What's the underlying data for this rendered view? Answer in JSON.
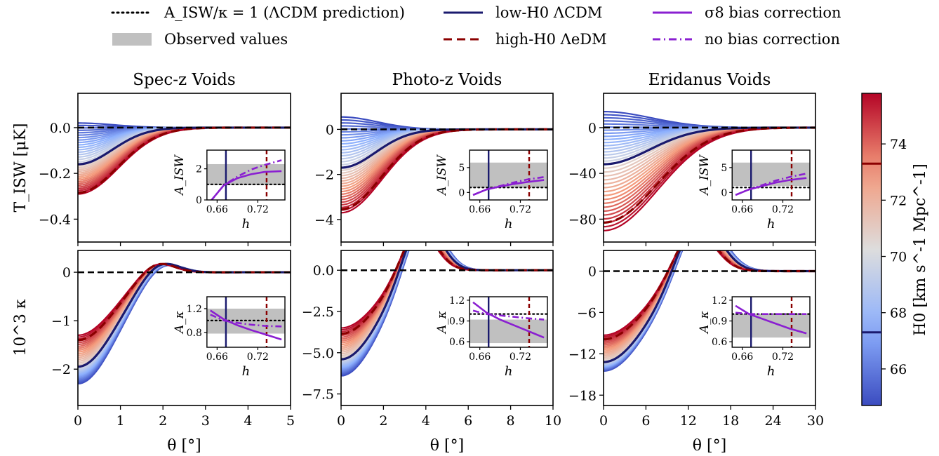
{
  "figure": {
    "column_titles": [
      "Spec-z Voids",
      "Photo-z Voids",
      "Eridanus Voids"
    ],
    "row_ylabels": [
      "T_ISW [μK]",
      "10^3 κ"
    ],
    "xlabel": "θ [°]"
  },
  "legend": [
    {
      "label": "A_ISW/κ = 1 (ΛCDM prediction)",
      "style": "dotted",
      "color": "#000000"
    },
    {
      "label": "Observed values",
      "style": "patch",
      "color": "#c0c0c0"
    },
    {
      "label": "low-H0 ΛCDM",
      "style": "solid",
      "color": "#1a1a6e"
    },
    {
      "label": "high-H0 ΛeDM",
      "style": "dashed",
      "color": "#8b0000"
    },
    {
      "label": "σ8 bias correction",
      "style": "solid",
      "color": "#8a1fd1"
    },
    {
      "label": "no bias correction",
      "style": "dashdot",
      "color": "#8a1fd1"
    }
  ],
  "colorbar": {
    "label": "H0 [km s^-1 Mpc^-1]",
    "range": [
      64.7,
      75.8
    ],
    "ticks": [
      66,
      68,
      70,
      72,
      74
    ],
    "markers": [
      {
        "value": 67.3,
        "color": "#1a1a6e"
      },
      {
        "value": 73.3,
        "color": "#8b0000"
      }
    ]
  },
  "chart_data": [
    {
      "type": "line",
      "name": "Spec-z Voids T_ISW",
      "xlim": [
        0,
        5
      ],
      "ylim": [
        -0.5,
        0.15
      ],
      "xticks": [
        0,
        1,
        2,
        3,
        4,
        5
      ],
      "yticks": [
        0.0,
        -0.2,
        -0.4
      ],
      "ytick_labels": [
        "0.0",
        "−0.2",
        "−0.4"
      ],
      "show_xticklabels": false,
      "profile": {
        "kind": "isw",
        "width": 1.0
      },
      "family_amplitudes": {
        "low_h0": [
          0.02,
          -0.16
        ],
        "high_h0": [
          -0.16,
          -0.29
        ]
      },
      "reference_curves": {
        "low_h0_lcdm": -0.16,
        "high_h0_lcdm": -0.285
      },
      "inset": {
        "ylabel": "A_ISW",
        "xlim": [
          0.645,
          0.76
        ],
        "xticks": [
          0.66,
          0.72
        ],
        "ylim": [
          0,
          3.2
        ],
        "yticks": [
          0,
          2
        ],
        "band": [
          0.95,
          2.3
        ],
        "prediction": 1.0,
        "vlines": [
          0.673,
          0.733
        ],
        "xlabel": "h",
        "sigma8_bias_correction": {
          "h": [
            0.65,
            0.67,
            0.69,
            0.71,
            0.73,
            0.755
          ],
          "A": [
            -0.1,
            0.95,
            1.4,
            1.65,
            1.8,
            1.85
          ]
        },
        "no_bias_correction": {
          "h": [
            0.65,
            0.67,
            0.69,
            0.71,
            0.73,
            0.755
          ],
          "A": [
            -0.1,
            0.95,
            1.5,
            1.95,
            2.25,
            2.55
          ]
        }
      }
    },
    {
      "type": "line",
      "name": "Photo-z Voids T_ISW",
      "xlim": [
        0,
        10
      ],
      "ylim": [
        -5,
        1.6
      ],
      "xticks": [
        0,
        2,
        4,
        6,
        8,
        10
      ],
      "yticks": [
        0,
        -2,
        -4
      ],
      "ytick_labels": [
        "0",
        "−2",
        "−4"
      ],
      "show_xticklabels": false,
      "profile": {
        "kind": "isw",
        "width": 2.0
      },
      "family_amplitudes": {
        "low_h0": [
          0.55,
          -1.7
        ],
        "high_h0": [
          -1.7,
          -3.7
        ]
      },
      "reference_curves": {
        "low_h0_lcdm": -1.7,
        "high_h0_lcdm": -3.55
      },
      "inset": {
        "ylabel": "A_ISW",
        "xlim": [
          0.645,
          0.76
        ],
        "xticks": [
          0.66,
          0.72
        ],
        "ylim": [
          -1.5,
          8.5
        ],
        "yticks": [
          0,
          5
        ],
        "band": [
          1.0,
          6.0
        ],
        "prediction": 1.0,
        "vlines": [
          0.673,
          0.733
        ],
        "xlabel": "h",
        "sigma8_bias_correction": {
          "h": [
            0.65,
            0.67,
            0.69,
            0.71,
            0.73,
            0.755
          ],
          "A": [
            -0.5,
            0.6,
            1.2,
            1.7,
            2.1,
            2.5
          ]
        },
        "no_bias_correction": {
          "h": [
            0.65,
            0.67,
            0.69,
            0.71,
            0.73,
            0.755
          ],
          "A": [
            -0.5,
            0.6,
            1.3,
            2.0,
            2.6,
            3.1
          ]
        }
      }
    },
    {
      "type": "line",
      "name": "Eridanus Voids T_ISW",
      "xlim": [
        0,
        30
      ],
      "ylim": [
        -100,
        30
      ],
      "xticks": [
        0,
        6,
        12,
        18,
        24,
        30
      ],
      "yticks": [
        0,
        -40,
        -80
      ],
      "ytick_labels": [
        "0",
        "−40",
        "−80"
      ],
      "show_xticklabels": false,
      "profile": {
        "kind": "isw",
        "width": 8.0
      },
      "family_amplitudes": {
        "low_h0": [
          14,
          -32
        ],
        "high_h0": [
          -32,
          -90
        ]
      },
      "reference_curves": {
        "low_h0_lcdm": -32,
        "high_h0_lcdm": -83
      },
      "inset": {
        "ylabel": "A_ISW",
        "xlim": [
          0.645,
          0.76
        ],
        "xticks": [
          0.66,
          0.72
        ],
        "ylim": [
          -1.5,
          8.5
        ],
        "yticks": [
          0,
          5
        ],
        "band": [
          1.3,
          6.0
        ],
        "prediction": 1.0,
        "vlines": [
          0.673,
          0.733
        ],
        "xlabel": "h",
        "sigma8_bias_correction": {
          "h": [
            0.65,
            0.67,
            0.69,
            0.71,
            0.73,
            0.755
          ],
          "A": [
            -0.5,
            0.6,
            1.3,
            2.0,
            2.5,
            2.9
          ]
        },
        "no_bias_correction": {
          "h": [
            0.65,
            0.67,
            0.69,
            0.71,
            0.73,
            0.755
          ],
          "A": [
            -0.5,
            0.6,
            1.5,
            2.4,
            3.1,
            3.8
          ]
        }
      }
    },
    {
      "type": "line",
      "name": "Spec-z Voids kappa",
      "xlim": [
        0,
        5
      ],
      "ylim": [
        -2.75,
        0.45
      ],
      "xticks": [
        0,
        1,
        2,
        3,
        4,
        5
      ],
      "yticks": [
        0,
        -1,
        -2
      ],
      "ytick_labels": [
        "0",
        "−1",
        "−2"
      ],
      "show_xticklabels": true,
      "xtick_labels": [
        "0",
        "1",
        "2",
        "3",
        "4",
        "5"
      ],
      "profile": {
        "kind": "kappa",
        "zero_crossing_low": 1.35,
        "zero_crossing_high": 1.25,
        "bump_low": 0.13,
        "bump_high": 0.2
      },
      "family_amplitudes": {
        "low_h0": [
          -2.3,
          -1.95
        ],
        "high_h0": [
          -1.95,
          -1.3
        ]
      },
      "reference_curves": {
        "low_h0_lcdm": -1.95,
        "high_h0_lcdm": -1.4
      },
      "inset": {
        "ylabel": "A_κ",
        "xlim": [
          0.645,
          0.76
        ],
        "xticks": [
          0.66,
          0.72
        ],
        "ylim": [
          0.55,
          1.4
        ],
        "yticks": [
          0.8,
          1.2
        ],
        "ytick_labels": [
          "0.8",
          "1.2"
        ],
        "band": [
          0.78,
          1.2
        ],
        "prediction": 1.0,
        "vlines": [
          0.673,
          0.733
        ],
        "xlabel": "h",
        "sigma8_bias_correction": {
          "h": [
            0.65,
            0.67,
            0.69,
            0.71,
            0.73,
            0.755
          ],
          "A": [
            1.17,
            1.02,
            0.92,
            0.84,
            0.77,
            0.68
          ]
        },
        "no_bias_correction": {
          "h": [
            0.65,
            0.67,
            0.69,
            0.71,
            0.73,
            0.755
          ],
          "A": [
            1.1,
            1.0,
            0.96,
            0.93,
            0.91,
            0.9
          ]
        }
      }
    },
    {
      "type": "line",
      "name": "Photo-z Voids kappa",
      "xlim": [
        0,
        10
      ],
      "ylim": [
        -8.2,
        1.2
      ],
      "xticks": [
        0,
        2,
        4,
        6,
        8,
        10
      ],
      "yticks": [
        0.0,
        -2.5,
        -5.0,
        -7.5
      ],
      "ytick_labels": [
        "0.0",
        "−2.5",
        "−5.0",
        "−7.5"
      ],
      "show_xticklabels": true,
      "xtick_labels": [
        "0",
        "2",
        "4",
        "6",
        "8",
        "10"
      ],
      "profile": {
        "kind": "kappa",
        "zero_crossing_low": 2.7,
        "zero_crossing_high": 2.5,
        "bump_low": 0.55,
        "bump_high": 0.75
      },
      "family_amplitudes": {
        "low_h0": [
          -6.4,
          -5.4
        ],
        "high_h0": [
          -5.4,
          -3.5
        ]
      },
      "reference_curves": {
        "low_h0_lcdm": -5.4,
        "high_h0_lcdm": -3.85
      },
      "inset": {
        "ylabel": "A_κ",
        "xlim": [
          0.645,
          0.76
        ],
        "xticks": [
          0.66,
          0.72
        ],
        "ylim": [
          0.52,
          1.25
        ],
        "yticks": [
          0.6,
          0.9,
          1.2
        ],
        "ytick_labels": [
          "0.6",
          "0.9",
          "1.2"
        ],
        "band": [
          0.58,
          0.92
        ],
        "prediction": 1.0,
        "vlines": [
          0.673,
          0.733
        ],
        "xlabel": "h",
        "sigma8_bias_correction": {
          "h": [
            0.65,
            0.67,
            0.69,
            0.71,
            0.73,
            0.755
          ],
          "A": [
            1.17,
            1.02,
            0.92,
            0.84,
            0.76,
            0.66
          ]
        },
        "no_bias_correction": {
          "h": [
            0.65,
            0.67,
            0.69,
            0.71,
            0.73,
            0.755
          ],
          "A": [
            1.05,
            1.0,
            0.98,
            0.96,
            0.94,
            0.92
          ]
        }
      }
    },
    {
      "type": "line",
      "name": "Eridanus Voids kappa",
      "xlim": [
        0,
        30
      ],
      "ylim": [
        -19.5,
        3
      ],
      "xticks": [
        0,
        6,
        12,
        18,
        24,
        30
      ],
      "yticks": [
        0,
        -6,
        -12,
        -18
      ],
      "ytick_labels": [
        "0",
        "−6",
        "−12",
        "−18"
      ],
      "show_xticklabels": true,
      "xtick_labels": [
        "0",
        "6",
        "12",
        "18",
        "24",
        "30"
      ],
      "profile": {
        "kind": "kappa",
        "zero_crossing_low": 9.5,
        "zero_crossing_high": 8.8,
        "bump_low": 0.6,
        "bump_high": 0.7
      },
      "family_amplitudes": {
        "low_h0": [
          -14.5,
          -13.2
        ],
        "high_h0": [
          -13.2,
          -9.3
        ]
      },
      "reference_curves": {
        "low_h0_lcdm": -13.2,
        "high_h0_lcdm": -9.9
      },
      "inset": {
        "ylabel": "A_κ",
        "xlim": [
          0.645,
          0.76
        ],
        "xticks": [
          0.66,
          0.72
        ],
        "ylim": [
          0.52,
          1.25
        ],
        "yticks": [
          0.6,
          0.9,
          1.2
        ],
        "ytick_labels": [
          "0.6",
          "0.9",
          "1.2"
        ],
        "band": [
          0.66,
          1.0
        ],
        "prediction": 1.0,
        "vlines": [
          0.673,
          0.733
        ],
        "xlabel": "h",
        "sigma8_bias_correction": {
          "h": [
            0.65,
            0.67,
            0.69,
            0.71,
            0.73,
            0.755
          ],
          "A": [
            1.12,
            1.0,
            0.93,
            0.86,
            0.79,
            0.72
          ]
        },
        "no_bias_correction": {
          "h": [
            0.65,
            0.67,
            0.69,
            0.71,
            0.73,
            0.755
          ],
          "A": [
            1.02,
            1.0,
            1.0,
            1.0,
            1.0,
            1.0
          ]
        }
      }
    }
  ]
}
